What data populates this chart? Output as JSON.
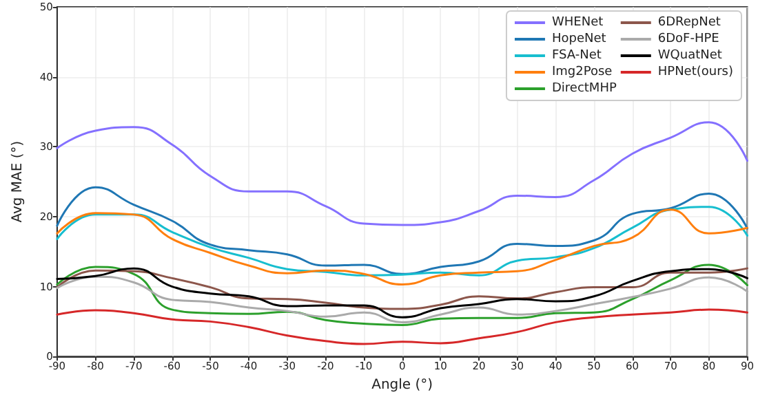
{
  "chart_data": {
    "type": "line",
    "xlabel": "Angle (°)",
    "ylabel": "Avg MAE (°)",
    "x": [
      -90,
      -80,
      -70,
      -60,
      -50,
      -40,
      -30,
      -20,
      -10,
      0,
      10,
      20,
      30,
      40,
      50,
      60,
      70,
      80,
      90
    ],
    "xlim": [
      -90,
      90
    ],
    "xticks": [
      -90,
      -80,
      -70,
      -60,
      -50,
      -40,
      -30,
      -20,
      -10,
      0,
      10,
      20,
      30,
      40,
      50,
      60,
      70,
      80,
      90
    ],
    "ylim": [
      0,
      50
    ],
    "yticks": [
      0,
      10,
      20,
      30,
      40,
      50
    ],
    "grid": true,
    "legend": "top right",
    "series": [
      {
        "name": "WHENet",
        "color": "#8470ff",
        "values": [
          29.8,
          32.3,
          32.8,
          30.3,
          25.8,
          23.6,
          23.6,
          21.5,
          19,
          18.8,
          19.2,
          20.8,
          23,
          22.8,
          25.2,
          29,
          31.3,
          33.5,
          28
        ]
      },
      {
        "name": "HopeNet",
        "color": "#1f77b4",
        "values": [
          18.7,
          24.2,
          21.7,
          19.4,
          16,
          15.2,
          14.6,
          13,
          13.1,
          11.8,
          12.8,
          13.6,
          16.1,
          15.8,
          16.6,
          20.4,
          21.2,
          23.3,
          18.3
        ]
      },
      {
        "name": "FSA-Net",
        "color": "#17becf",
        "values": [
          16.8,
          20.3,
          20.3,
          17.8,
          15.6,
          14.1,
          12.5,
          12.1,
          11.6,
          11.7,
          12,
          11.6,
          13.7,
          14.2,
          15.5,
          18.4,
          21,
          21.4,
          17.3
        ]
      },
      {
        "name": "Img2Pose",
        "color": "#ff7f0e",
        "values": [
          17.6,
          20.5,
          20.3,
          16.8,
          14.8,
          13,
          11.9,
          12.3,
          11.8,
          10.3,
          11.6,
          12,
          12.2,
          13.8,
          15.8,
          17,
          21,
          17.6,
          18.4
        ]
      },
      {
        "name": "DirectMHP",
        "color": "#2ca02c",
        "values": [
          10.3,
          12.8,
          11.8,
          6.7,
          6.2,
          6.1,
          6.4,
          5.2,
          4.7,
          4.5,
          5.4,
          5.5,
          5.5,
          6.2,
          6.3,
          8.2,
          10.9,
          13.1,
          10.2
        ]
      },
      {
        "name": "6DRepNet",
        "color": "#8c564b",
        "values": [
          9.9,
          12.3,
          12.2,
          11.2,
          9.9,
          8.3,
          8.2,
          7.7,
          7,
          6.8,
          7.4,
          8.6,
          8.3,
          9.2,
          9.9,
          9.9,
          12,
          12,
          12.6
        ]
      },
      {
        "name": "6DoF-HPE",
        "color": "#aaaaaa",
        "values": [
          9.8,
          11.4,
          10.6,
          8.1,
          7.8,
          7,
          6.5,
          5.7,
          6.3,
          4.9,
          6,
          7,
          6,
          6.5,
          7.5,
          8.5,
          9.7,
          11.3,
          9.3
        ]
      },
      {
        "name": "WQuatNet",
        "color": "#000000",
        "values": [
          11.1,
          11.5,
          12.6,
          10,
          9,
          8.6,
          7.2,
          7.3,
          7.3,
          5.6,
          6.9,
          7.5,
          8.2,
          7.9,
          8.6,
          10.8,
          12.2,
          12.5,
          11.2
        ]
      },
      {
        "name": "HPNet(ours)",
        "color": "#d62728",
        "values": [
          6,
          6.6,
          6.2,
          5.3,
          5,
          4.2,
          3,
          2.2,
          1.8,
          2.1,
          1.9,
          2.6,
          3.5,
          4.9,
          5.6,
          6,
          6.3,
          6.7,
          6.3
        ]
      }
    ]
  }
}
